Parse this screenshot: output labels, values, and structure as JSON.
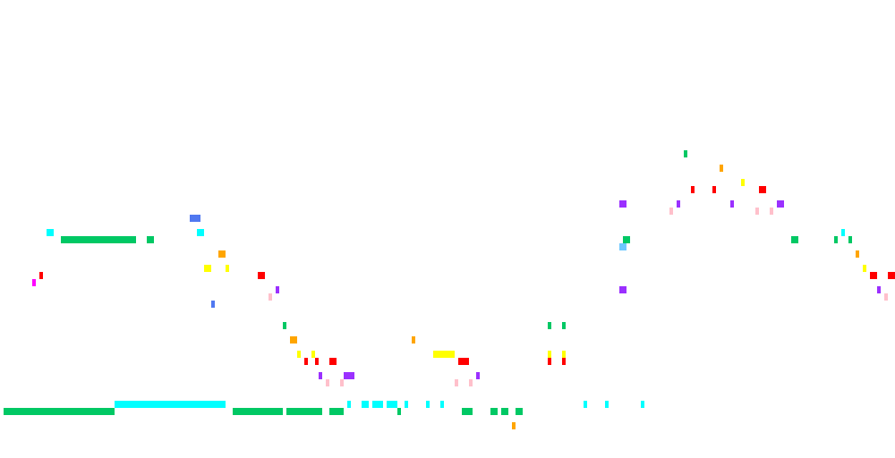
{
  "game": {
    "background_color": "#ffffff",
    "palette": {
      "green": "#00c864",
      "cyan": "#00ffff",
      "red": "#ff0000",
      "yellow": "#ffff00",
      "orange": "#ffa500",
      "purple": "#9b30ff",
      "pink": "#ffc0cb",
      "blue": "#5078f0",
      "magenta": "#ff00ff",
      "light_blue": "#6ec8ff"
    }
  }
}
